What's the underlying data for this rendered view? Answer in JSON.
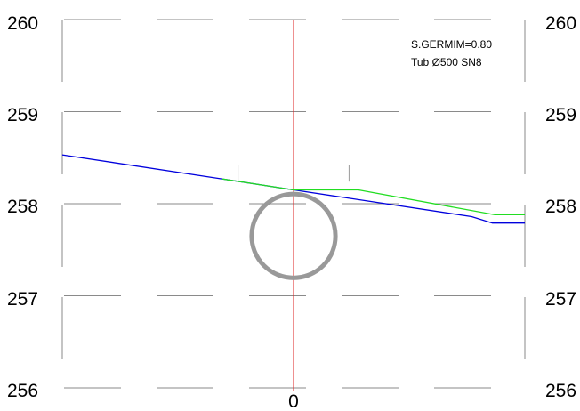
{
  "chart_data": {
    "type": "line",
    "title": "",
    "xlabel": "",
    "ylabel": "",
    "xlim": [
      -1.0,
      1.0
    ],
    "ylim": [
      256,
      260
    ],
    "y_ticks": [
      "260",
      "259",
      "258",
      "257",
      "256"
    ],
    "x_ticks": [
      "0"
    ],
    "annotations": [
      "S.GERMIM=0.80",
      "Tub Ø500 SN8"
    ],
    "grid": "dashed",
    "series": [
      {
        "color": "#0000dd",
        "points": [
          [
            -1.0,
            258.53
          ],
          [
            -0.31,
            258.27
          ],
          [
            0.0,
            258.15
          ],
          [
            0.77,
            257.86
          ],
          [
            0.86,
            257.79
          ],
          [
            1.0,
            257.79
          ]
        ]
      },
      {
        "color": "#22dd22",
        "points": [
          [
            -0.31,
            258.27
          ],
          [
            0.0,
            258.15
          ],
          [
            0.28,
            258.15
          ],
          [
            0.87,
            257.88
          ],
          [
            1.0,
            257.88
          ]
        ]
      }
    ],
    "centerline": {
      "x": 0,
      "color": "#dd2222"
    },
    "pipe": {
      "center_x": 0,
      "center_y": 257.65,
      "radius_y": 0.455,
      "color": "#999999"
    },
    "ticks_top": [
      -0.24,
      0.24
    ]
  }
}
